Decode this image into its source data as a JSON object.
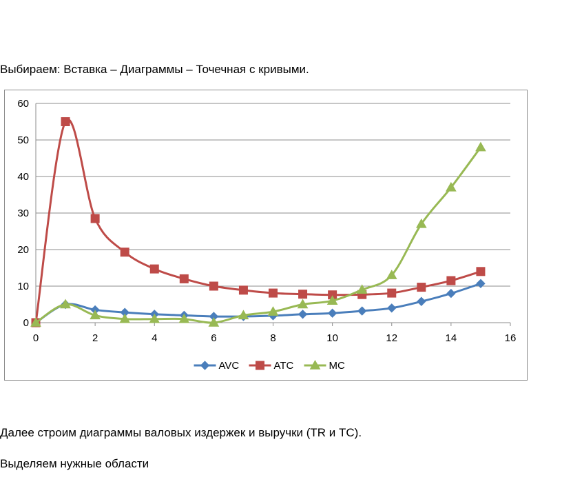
{
  "paragraphs": {
    "p1": "Выбираем: Вставка – Диаграммы – Точечная с кривыми.",
    "p2": "Далее строим диаграммы валовых издержек и выручки (TR и TC).",
    "p3": "Выделяем нужные области"
  },
  "chart_data": {
    "type": "scatter",
    "smooth": true,
    "title": "",
    "xlabel": "",
    "ylabel": "",
    "xlim": [
      0,
      16
    ],
    "ylim": [
      0,
      60
    ],
    "xticks": [
      0,
      2,
      4,
      6,
      8,
      10,
      12,
      14,
      16
    ],
    "yticks": [
      0,
      10,
      20,
      30,
      40,
      50,
      60
    ],
    "grid": "horizontal",
    "legend_position": "bottom",
    "x": [
      0,
      1,
      2,
      3,
      4,
      5,
      6,
      7,
      8,
      9,
      10,
      11,
      12,
      13,
      14,
      15
    ],
    "series": [
      {
        "name": "AVC",
        "color": "#4a7ebb",
        "marker": "diamond",
        "values": [
          0,
          5,
          3.5,
          2.8,
          2.3,
          2,
          1.7,
          1.7,
          1.9,
          2.3,
          2.6,
          3.2,
          4,
          5.8,
          8,
          10.7
        ]
      },
      {
        "name": "ATC",
        "color": "#be4b48",
        "marker": "square",
        "values": [
          0,
          55,
          28.5,
          19.3,
          14.7,
          12,
          10,
          8.9,
          8.1,
          7.8,
          7.6,
          7.7,
          8.1,
          9.7,
          11.5,
          14
        ]
      },
      {
        "name": "MC",
        "color": "#98b954",
        "marker": "triangle",
        "values": [
          0,
          5,
          2,
          1,
          1,
          1,
          0,
          2,
          3,
          5,
          6,
          9,
          13,
          27,
          37,
          48
        ]
      }
    ]
  }
}
